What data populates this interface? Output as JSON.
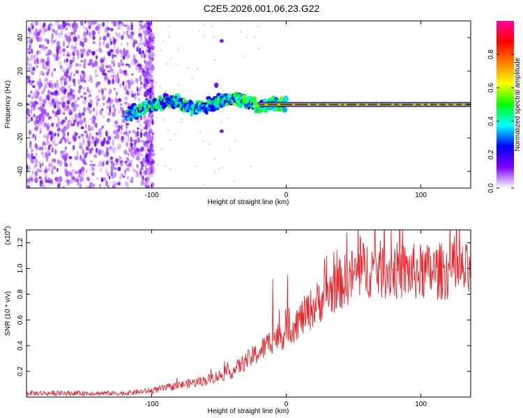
{
  "title": "C2E5.2026.001.06.23.G22",
  "chart_data": [
    {
      "type": "heatmap",
      "name": "spectrogram",
      "xlabel": "Height of straight line (km)",
      "ylabel": "Frequency (Hz)",
      "xlim": [
        -193,
        137
      ],
      "ylim": [
        -50,
        50
      ],
      "xticks": [
        -100,
        0,
        100
      ],
      "yticks": [
        -40,
        -20,
        0,
        20,
        40
      ],
      "colorbar": {
        "label": "Normalized spectral amplitude",
        "range": [
          0.0,
          1.0
        ],
        "ticks": [
          0.0,
          0.2,
          0.4,
          0.6,
          0.8
        ],
        "tick_labels": [
          "0.0",
          "0.2",
          "0.4",
          "0.6",
          "0.8"
        ],
        "colors": [
          "#ffffff",
          "#7f00ff",
          "#0000ff",
          "#00ffff",
          "#00ff00",
          "#ffff00",
          "#ff7f00",
          "#ff0000",
          "#ff00a0"
        ]
      },
      "features": {
        "noise_region_x": [
          -193,
          -105
        ],
        "drifting_signal": [
          {
            "x": -118,
            "y": -6
          },
          {
            "x": -110,
            "y": -3
          },
          {
            "x": -100,
            "y": 0
          },
          {
            "x": -90,
            "y": 2
          },
          {
            "x": -80,
            "y": 1
          },
          {
            "x": -70,
            "y": -3
          },
          {
            "x": -60,
            "y": -1
          },
          {
            "x": -50,
            "y": 2
          },
          {
            "x": -40,
            "y": 4
          },
          {
            "x": -30,
            "y": 1
          },
          {
            "x": -20,
            "y": -1
          },
          {
            "x": -10,
            "y": 0
          },
          {
            "x": 0,
            "y": 0
          }
        ],
        "stable_signal": {
          "x_start": 0,
          "x_end": 137,
          "y": 0
        }
      }
    },
    {
      "type": "line",
      "name": "snr",
      "xlabel": "Height of straight line (km)",
      "ylabel": "SNR (10 * v/v)",
      "y_scale_label": "(x10",
      "y_scale_exponent": "4",
      "y_scale_suffix": ")",
      "xlim": [
        -193,
        137
      ],
      "ylim": [
        0.0,
        1.3
      ],
      "xticks": [
        -100,
        0,
        100
      ],
      "yticks": [
        0.2,
        0.4,
        0.6,
        0.8,
        1.0,
        1.2
      ],
      "ytick_labels": [
        "0.2",
        "0.4",
        "0.6",
        "0.8",
        "1.0",
        "1.2"
      ],
      "color": "#e8252a",
      "trend": [
        {
          "x": -193,
          "y": 0.03
        },
        {
          "x": -120,
          "y": 0.03
        },
        {
          "x": -100,
          "y": 0.05
        },
        {
          "x": -80,
          "y": 0.09
        },
        {
          "x": -60,
          "y": 0.13
        },
        {
          "x": -40,
          "y": 0.2
        },
        {
          "x": -30,
          "y": 0.28
        },
        {
          "x": -20,
          "y": 0.35
        },
        {
          "x": -10,
          "y": 0.45
        },
        {
          "x": 0,
          "y": 0.5
        },
        {
          "x": 10,
          "y": 0.6
        },
        {
          "x": 20,
          "y": 0.7
        },
        {
          "x": 30,
          "y": 0.8
        },
        {
          "x": 40,
          "y": 0.88
        },
        {
          "x": 50,
          "y": 0.95
        },
        {
          "x": 60,
          "y": 1.0
        },
        {
          "x": 80,
          "y": 0.98
        },
        {
          "x": 100,
          "y": 0.97
        },
        {
          "x": 120,
          "y": 0.98
        },
        {
          "x": 137,
          "y": 0.97
        }
      ],
      "spikes": [
        {
          "x": -10,
          "y": 0.92
        },
        {
          "x": 1,
          "y": 0.95
        },
        {
          "x": 30,
          "y": 1.1
        },
        {
          "x": 45,
          "y": 1.28
        },
        {
          "x": 55,
          "y": 1.25
        },
        {
          "x": 78,
          "y": 1.3
        },
        {
          "x": 125,
          "y": 1.25
        }
      ]
    }
  ]
}
